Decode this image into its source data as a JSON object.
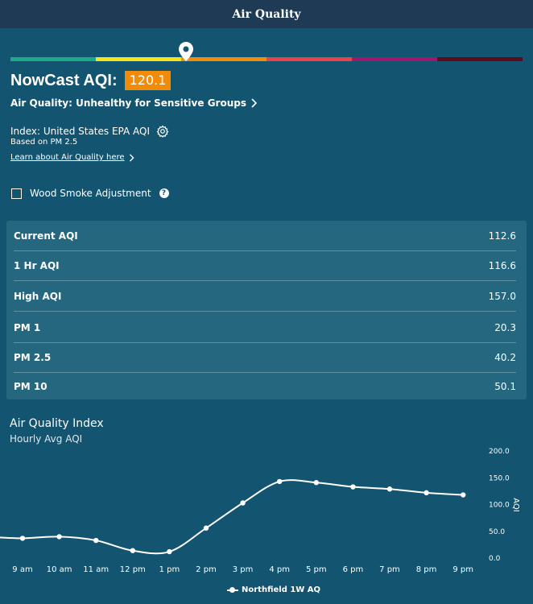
{
  "header": {
    "title": "Air Quality"
  },
  "scale": {
    "colors": [
      "#1daa8a",
      "#f6e21a",
      "#f08c0a",
      "#e8434b",
      "#9f1a6e",
      "#5e0c1c"
    ],
    "marker_value": 120.1
  },
  "nowcast": {
    "label": "NowCast AQI:",
    "value": "120.1",
    "color": "#f08c0a"
  },
  "category": {
    "text": "Air Quality: Unhealthy for Sensitive Groups"
  },
  "index": {
    "text": "Index: United States EPA AQI",
    "basis": "Based on PM 2.5"
  },
  "learn": {
    "text": "Learn about Air Quality here"
  },
  "wood_smoke": {
    "label": "Wood Smoke Adjustment",
    "checked": false,
    "help_glyph": "?"
  },
  "metrics": [
    {
      "label": "Current AQI",
      "value": "112.6"
    },
    {
      "label": "1 Hr AQI",
      "value": "116.6"
    },
    {
      "label": "High AQI",
      "value": "157.0"
    },
    {
      "label": "PM 1",
      "value": "20.3"
    },
    {
      "label": "PM 2.5",
      "value": "40.2"
    },
    {
      "label": "PM 10",
      "value": "50.1"
    }
  ],
  "chart": {
    "title": "Air Quality Index",
    "subtitle": "Hourly Avg AQI"
  },
  "chart_data": {
    "type": "line",
    "title": "Air Quality Index",
    "subtitle": "Hourly Avg AQI",
    "categories": [
      "9 am",
      "10 am",
      "11 am",
      "12 pm",
      "1 pm",
      "2 pm",
      "3 pm",
      "4 pm",
      "5 pm",
      "6 pm",
      "7 pm",
      "8 pm",
      "9 pm"
    ],
    "series": [
      {
        "name": "Northfield 1W AQ",
        "values": [
          37,
          40,
          33,
          14,
          12,
          56,
          103,
          143,
          141,
          133,
          129,
          122,
          118
        ]
      }
    ],
    "ylabel": "AQI",
    "ylim": [
      0,
      200
    ],
    "yticks": [
      "0.0",
      "50.0",
      "100.0",
      "150.0",
      "200.0"
    ],
    "y_axis_position": "right",
    "grid": false,
    "legend": "bottom-center",
    "line_color": "#ffffff"
  }
}
